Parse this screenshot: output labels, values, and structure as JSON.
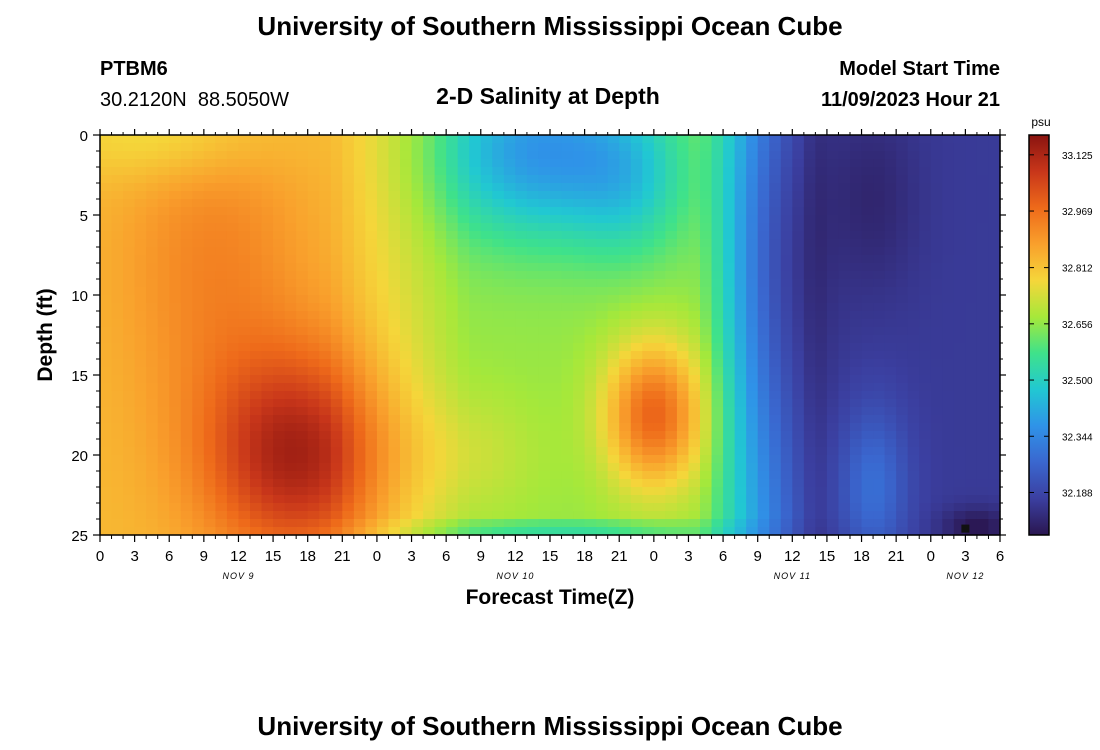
{
  "page": {
    "title": "University of Southern Mississippi Ocean Cube",
    "footer_title": "University of Southern Mississippi Ocean Cube"
  },
  "header": {
    "station_id": "PTBM6",
    "coordinates": "30.2120N  88.5050W",
    "model_label": "Model Start Time",
    "model_time": "11/09/2023 Hour 21"
  },
  "chart_data": {
    "type": "heatmap",
    "title": "2-D Salinity at Depth",
    "xlabel": "Forecast Time(Z)",
    "ylabel": "Depth (ft)",
    "x_unit": "hours since 2023-11-09 00Z",
    "xlim": [
      0,
      78
    ],
    "ylim": [
      0,
      25
    ],
    "y_inverted": true,
    "x_tick_labels": [
      "0",
      "3",
      "6",
      "9",
      "12",
      "15",
      "18",
      "21",
      "0",
      "3",
      "6",
      "9",
      "12",
      "15",
      "18",
      "21",
      "0",
      "3",
      "6",
      "9",
      "12",
      "15",
      "18",
      "21",
      "0",
      "3",
      "6"
    ],
    "y_tick_labels": [
      "0",
      "5",
      "10",
      "15",
      "20",
      "25"
    ],
    "day_labels": [
      {
        "label": "NOV 9",
        "hour": 12
      },
      {
        "label": "NOV 10",
        "hour": 36
      },
      {
        "label": "NOV 11",
        "hour": 60
      },
      {
        "label": "NOV 12",
        "hour": 75
      }
    ],
    "colorbar": {
      "unit": "psu",
      "min": 32.07,
      "max": 33.18,
      "tick_labels": [
        "33.125",
        "32.969",
        "32.812",
        "32.656",
        "32.500",
        "32.344",
        "32.188"
      ],
      "colors": [
        "#2a1650",
        "#3b3fa0",
        "#3a67cf",
        "#2f93e8",
        "#21c8d2",
        "#3fe28a",
        "#a6e83a",
        "#f5d63a",
        "#f9a02c",
        "#ee6a1a",
        "#c8361a",
        "#8a1410"
      ]
    },
    "features": [
      {
        "name": "background-mid",
        "hour": 39,
        "depth": 12,
        "value": 32.69
      },
      {
        "name": "upper-left-warm",
        "hour": 8,
        "depth": 4,
        "value": 32.83
      },
      {
        "name": "deep-max-nov9",
        "hour": 17,
        "depth": 20,
        "value": 33.1
      },
      {
        "name": "deep-max-nov10",
        "hour": 48,
        "depth": 18,
        "value": 32.98
      },
      {
        "name": "surface-fresh-nov10",
        "hour": 39,
        "depth": 2,
        "value": 32.4
      },
      {
        "name": "low-nov11",
        "hour": 66,
        "depth": 7,
        "value": 32.14
      },
      {
        "name": "low-nov12-bottom",
        "hour": 75,
        "depth": 24,
        "value": 32.1
      },
      {
        "name": "bottom-layer-nov10",
        "hour": 42,
        "depth": 25,
        "value": 32.55
      }
    ]
  }
}
